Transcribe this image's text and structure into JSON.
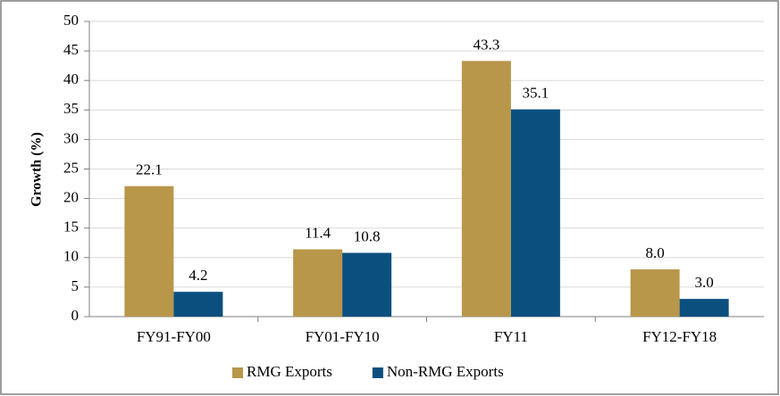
{
  "chart_data": {
    "type": "bar",
    "y_label": "Growth (%)",
    "categories": [
      "FY91-FY00",
      "FY01-FY10",
      "FY11",
      "FY12-FY18"
    ],
    "series": [
      {
        "name": "RMG Exports",
        "color": "#b8964a",
        "values": [
          22.1,
          11.4,
          43.3,
          8.0
        ],
        "value_labels": [
          "22.1",
          "11.4",
          "43.3",
          "8.0"
        ]
      },
      {
        "name": "Non-RMG Exports",
        "color": "#0b4f7f",
        "values": [
          4.2,
          10.8,
          35.1,
          3.0
        ],
        "value_labels": [
          "4.2",
          "10.8",
          "35.1",
          "3.0"
        ]
      }
    ],
    "ylim": [
      0,
      50
    ],
    "yticks": [
      0,
      5,
      10,
      15,
      20,
      25,
      30,
      35,
      40,
      45,
      50
    ],
    "grid": true,
    "legend": "bottom"
  }
}
